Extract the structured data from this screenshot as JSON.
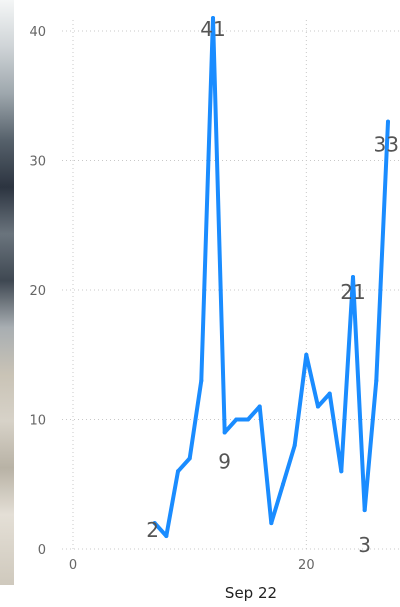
{
  "chart_data": {
    "type": "line",
    "title": "",
    "xlabel": "Sep 22",
    "ylabel": "",
    "xlim": [
      0,
      27
    ],
    "ylim": [
      0,
      40
    ],
    "x_ticks": [
      0,
      20
    ],
    "y_ticks": [
      0,
      10,
      20,
      30,
      40
    ],
    "grid": true,
    "line_color": "#1a8cff",
    "series": [
      {
        "x": [
          7,
          8,
          9,
          10,
          11,
          12,
          13,
          14,
          15,
          16,
          17,
          18,
          19,
          20,
          21,
          22,
          23,
          24,
          25,
          26,
          27
        ],
        "values": [
          2,
          1,
          6,
          7,
          13,
          41,
          9,
          10,
          10,
          11,
          2,
          5,
          8,
          15,
          11,
          12,
          6,
          21,
          3,
          13,
          33
        ]
      }
    ],
    "data_labels": [
      {
        "x": 7,
        "text": "2"
      },
      {
        "x": 12,
        "text": "41"
      },
      {
        "x": 13,
        "text": "9"
      },
      {
        "x": 24,
        "text": "21"
      },
      {
        "x": 25,
        "text": "3"
      },
      {
        "x": 27,
        "text": "33"
      }
    ]
  }
}
